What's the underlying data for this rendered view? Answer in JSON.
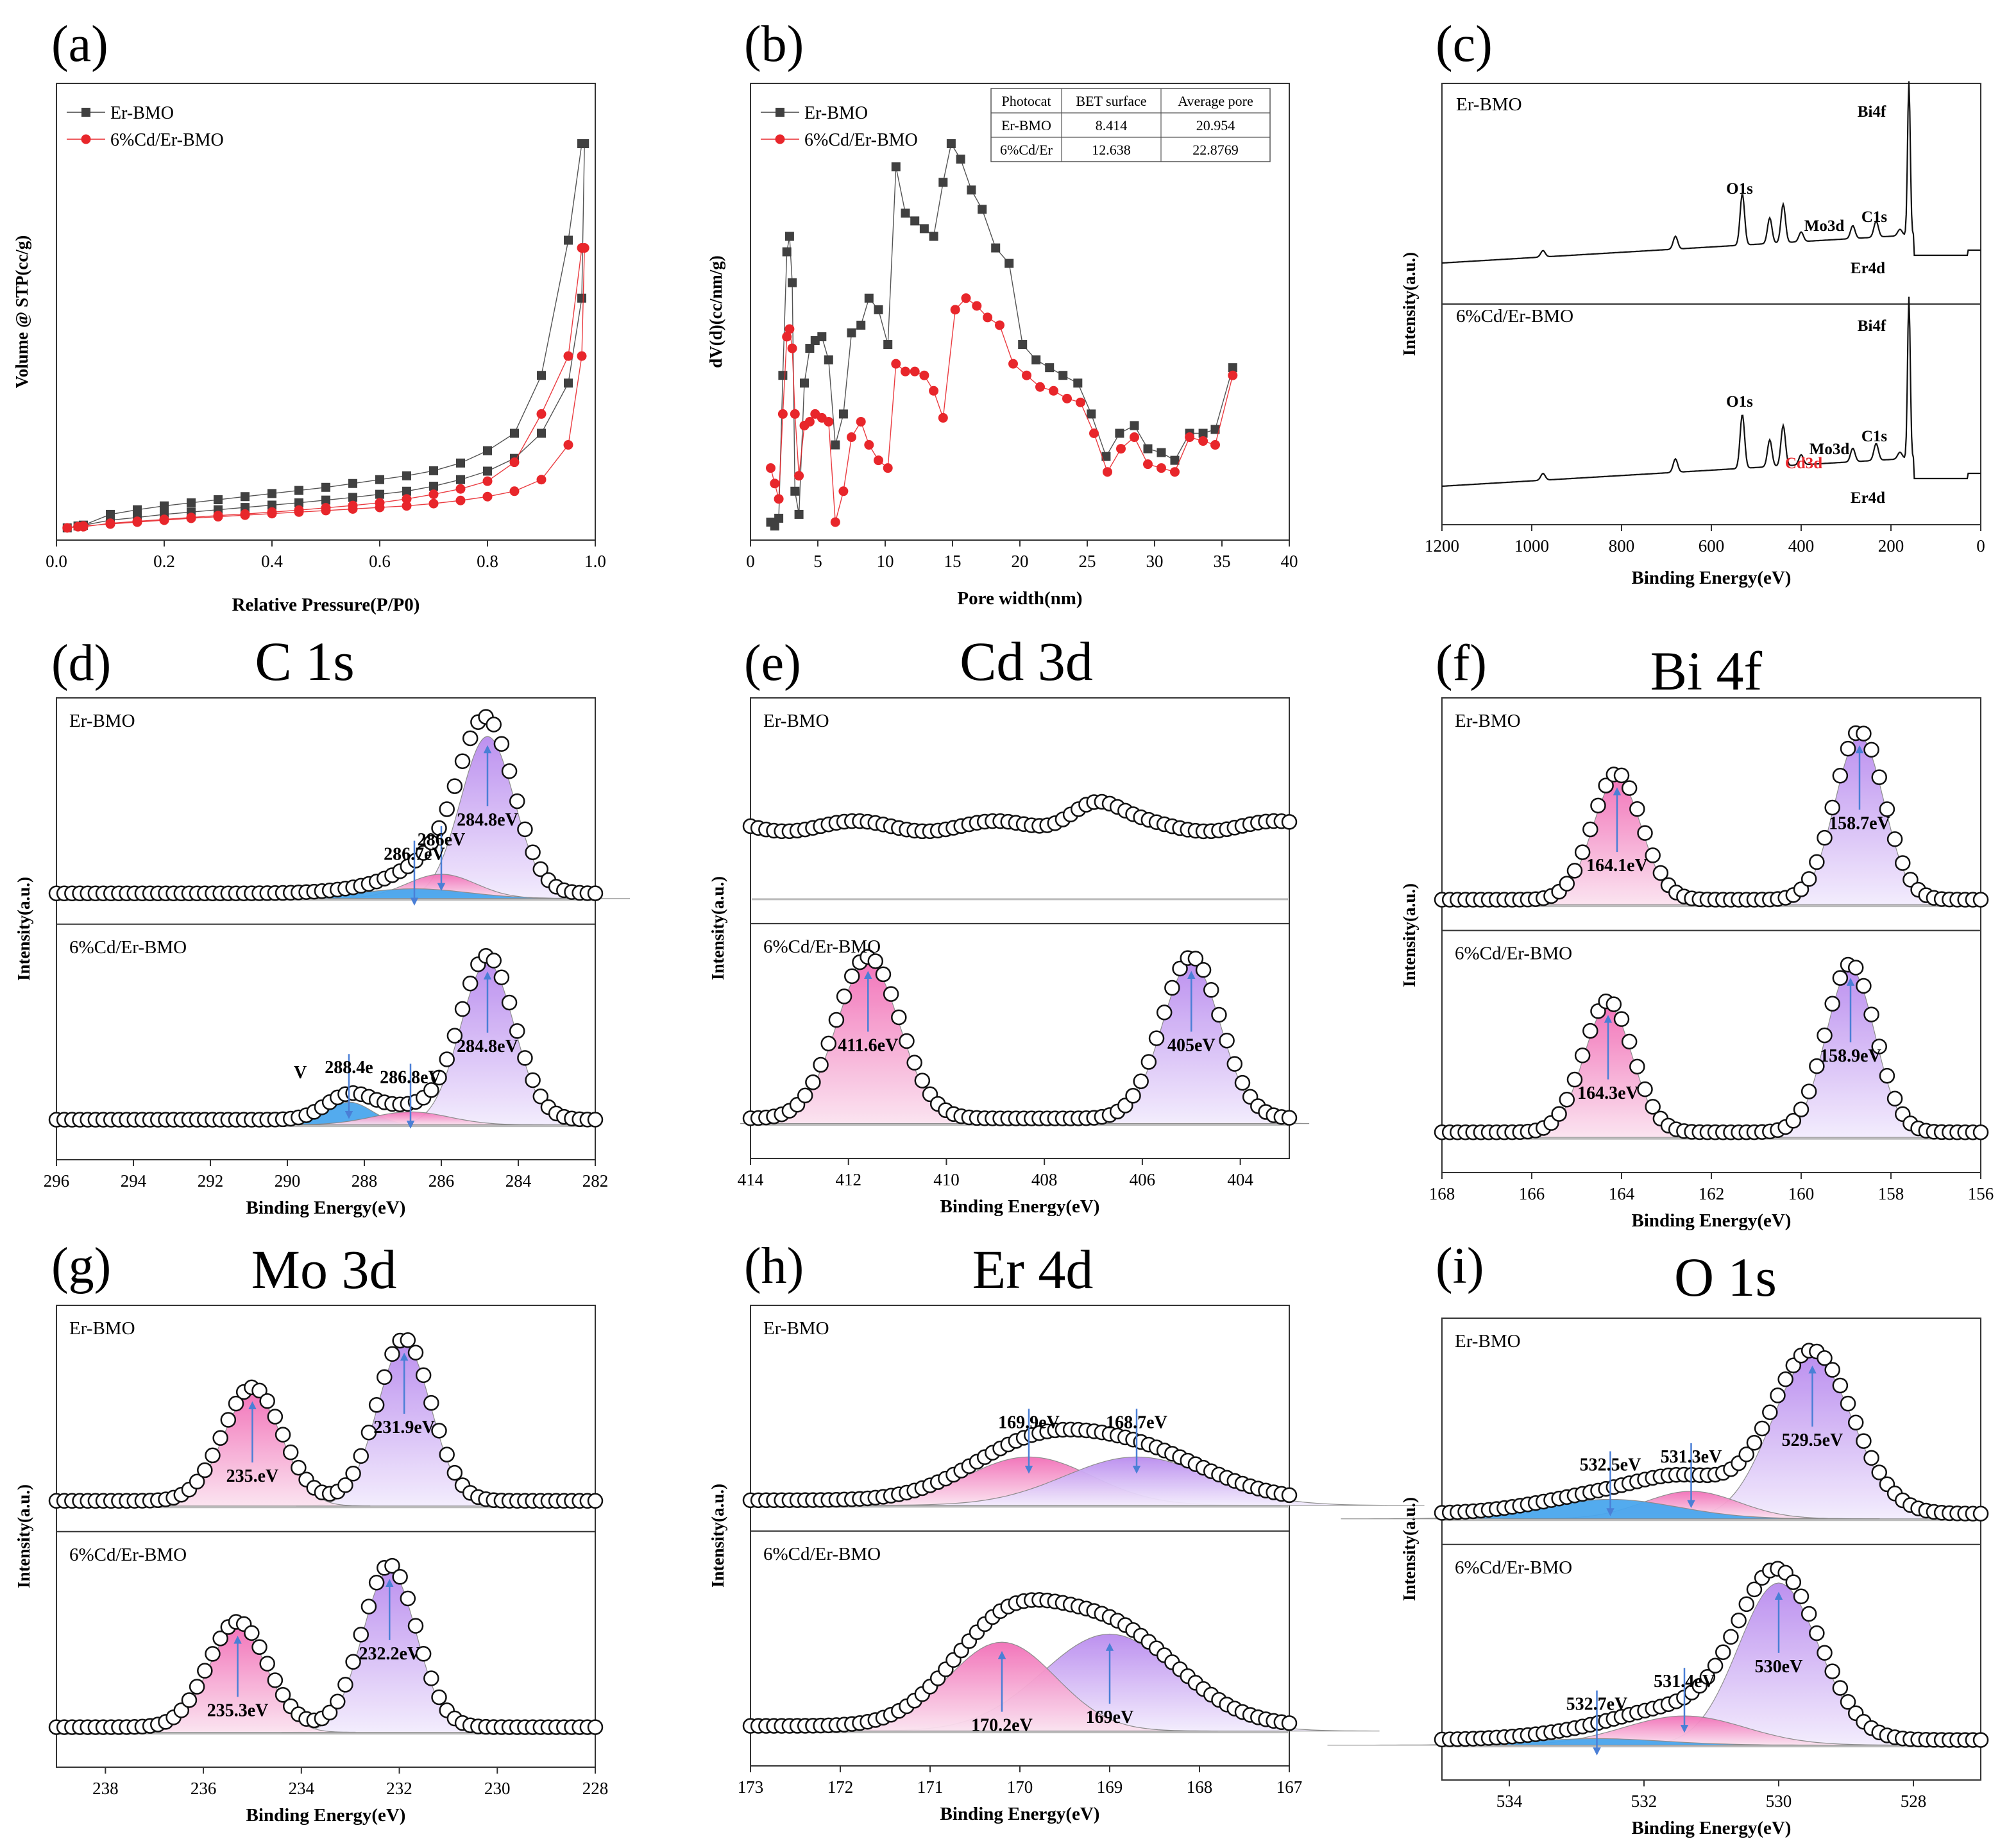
{
  "chart_data": [
    {
      "panel": "(a)",
      "type": "scatter",
      "title": "",
      "xlabel": "Relative Pressure(P/P0)",
      "ylabel": "Volume @ STP(cc/g)",
      "xlim": [
        0,
        1.0
      ],
      "ylim": [
        0,
        100
      ],
      "xticks": [
        "0.0",
        "0.2",
        "0.4",
        "0.6",
        "0.8",
        "1.0"
      ],
      "legend": [
        "Er-BMO",
        "6%Cd/Er-BMO"
      ],
      "series": [
        {
          "name": "Er-BMO",
          "marker": "square",
          "color": "#404040",
          "x": [
            0.02,
            0.04,
            0.05,
            0.1,
            0.15,
            0.2,
            0.25,
            0.3,
            0.35,
            0.4,
            0.45,
            0.5,
            0.55,
            0.6,
            0.65,
            0.7,
            0.75,
            0.8,
            0.85,
            0.9,
            0.95,
            0.975,
            0.98,
            0.975,
            0.95,
            0.9,
            0.85,
            0.8,
            0.75,
            0.7,
            0.65,
            0.6,
            0.55,
            0.5,
            0.45,
            0.4,
            0.35,
            0.3,
            0.25,
            0.2,
            0.15,
            0.1,
            0.05
          ],
          "y": [
            0.5,
            1.0,
            1.2,
            2.5,
            3.2,
            4.0,
            4.6,
            5.2,
            5.8,
            6.4,
            7.0,
            7.7,
            8.4,
            9.2,
            10.0,
            11.3,
            13.0,
            15.2,
            18.5,
            25.0,
            38.0,
            60.0,
            100.0,
            100.0,
            75.0,
            40.0,
            25.0,
            20.5,
            17.3,
            15.3,
            14.0,
            13.0,
            12.0,
            11.0,
            10.2,
            9.4,
            8.6,
            7.8,
            7.0,
            6.2,
            5.2,
            4.0,
            1.2
          ]
        },
        {
          "name": "6%Cd/Er-BMO",
          "marker": "circle",
          "color": "#e8262b",
          "x": [
            0.02,
            0.04,
            0.05,
            0.1,
            0.15,
            0.2,
            0.25,
            0.3,
            0.35,
            0.4,
            0.45,
            0.5,
            0.55,
            0.6,
            0.65,
            0.7,
            0.75,
            0.8,
            0.85,
            0.9,
            0.95,
            0.975,
            0.98,
            0.975,
            0.95,
            0.9,
            0.85,
            0.8,
            0.75,
            0.7,
            0.65,
            0.6,
            0.55,
            0.5,
            0.45,
            0.4,
            0.35,
            0.3,
            0.25,
            0.2,
            0.15,
            0.1,
            0.05
          ],
          "y": [
            0.5,
            0.8,
            1.0,
            1.5,
            2.0,
            2.5,
            3.0,
            3.4,
            3.8,
            4.2,
            4.6,
            5.0,
            5.4,
            5.8,
            6.2,
            6.8,
            7.6,
            8.6,
            10.0,
            13.0,
            22.0,
            45.0,
            73.0,
            73.0,
            45.0,
            30.0,
            17.5,
            12.6,
            10.6,
            9.2,
            8.0,
            7.0,
            6.3,
            5.7,
            5.1,
            4.6,
            4.1,
            3.7,
            3.2,
            2.7,
            2.2,
            1.7,
            0.8
          ]
        }
      ]
    },
    {
      "panel": "(b)",
      "type": "scatter",
      "title": "",
      "xlabel": "Pore width(nm)",
      "ylabel": "dV(d)(cc/nm/g)",
      "xlim": [
        0,
        40
      ],
      "ylim": [
        0,
        100
      ],
      "xticks": [
        "0",
        "5",
        "10",
        "15",
        "20",
        "25",
        "30",
        "35",
        "40"
      ],
      "legend": [
        "Er-BMO",
        "6%Cd/Er-BMO"
      ],
      "table": {
        "headers": [
          "Photocat",
          "BET surface",
          "Average pore"
        ],
        "rows": [
          [
            "Er-BMO",
            "8.414",
            "20.954"
          ],
          [
            "6%Cd/Er",
            "12.638",
            "22.8769"
          ]
        ]
      },
      "series": [
        {
          "name": "Er-BMO",
          "marker": "square",
          "color": "#404040",
          "x": [
            1.5,
            1.8,
            2.1,
            2.4,
            2.7,
            2.9,
            3.1,
            3.3,
            3.6,
            4.0,
            4.4,
            4.8,
            5.3,
            5.8,
            6.3,
            6.9,
            7.5,
            8.2,
            8.8,
            9.5,
            10.2,
            10.8,
            11.5,
            12.2,
            12.9,
            13.6,
            14.3,
            14.9,
            15.6,
            16.4,
            17.2,
            18.2,
            19.2,
            20.2,
            21.2,
            22.2,
            23.2,
            24.3,
            25.3,
            26.4,
            27.4,
            28.5,
            29.5,
            30.5,
            31.5,
            32.6,
            33.6,
            34.5,
            35.8
          ],
          "y": [
            2,
            1,
            3,
            40,
            72,
            76,
            64,
            10,
            4,
            38,
            47,
            49,
            50,
            44,
            22,
            30,
            51,
            53,
            60,
            57,
            48,
            94,
            82,
            80,
            78,
            76,
            90,
            100,
            96,
            88,
            83,
            73,
            69,
            48,
            44,
            42,
            40,
            38,
            30,
            19,
            25,
            27,
            21,
            20,
            18,
            25,
            25,
            26,
            42
          ]
        },
        {
          "name": "6%Cd/Er-BMO",
          "marker": "circle",
          "color": "#e8262b",
          "x": [
            1.5,
            1.8,
            2.1,
            2.4,
            2.7,
            2.9,
            3.1,
            3.3,
            3.6,
            4.0,
            4.4,
            4.8,
            5.3,
            5.8,
            6.3,
            6.9,
            7.5,
            8.2,
            8.8,
            9.5,
            10.2,
            10.8,
            11.5,
            12.2,
            12.9,
            13.6,
            14.3,
            15.2,
            16.0,
            16.8,
            17.6,
            18.5,
            19.5,
            20.5,
            21.5,
            22.5,
            23.5,
            24.5,
            25.5,
            26.5,
            27.5,
            28.5,
            29.5,
            30.5,
            31.5,
            32.6,
            33.6,
            34.5,
            35.8
          ],
          "y": [
            16,
            12,
            8,
            30,
            50,
            52,
            47,
            30,
            14,
            27,
            28,
            30,
            29,
            28,
            2,
            10,
            24,
            28,
            22,
            18,
            16,
            43,
            41,
            41,
            40,
            36,
            29,
            57,
            60,
            58,
            55,
            53,
            43,
            40,
            37,
            36,
            34,
            33,
            25,
            15,
            21,
            24,
            17,
            16,
            15,
            24,
            23,
            22,
            40
          ]
        }
      ]
    },
    {
      "panel": "(c)",
      "type": "line",
      "title": "",
      "xlabel": "Binding Energy(eV)",
      "ylabel": "Intensity(a.u.)",
      "xlim": [
        1200,
        0
      ],
      "xticks": [
        "1200",
        "1000",
        "800",
        "600",
        "400",
        "200",
        "0"
      ],
      "subplots": [
        {
          "label": "Er-BMO",
          "annotations": [
            "Bi4f",
            "O1s",
            "Mo3d",
            "C1s",
            "Er4d"
          ]
        },
        {
          "label": "6%Cd/Er-BMO",
          "annotations": [
            "Bi4f",
            "O1s",
            "Mo3d",
            "C1s",
            "Cd3d",
            "Er4d"
          ]
        }
      ],
      "peaks_eV": [
        975,
        680,
        531,
        470,
        440,
        400,
        285,
        233,
        180,
        160,
        25
      ]
    },
    {
      "panel": "(d)",
      "type": "line",
      "title": "C 1s",
      "xlabel": "Binding Energy(eV)",
      "ylabel": "Intensity(a.u.)",
      "xlim": [
        296,
        282
      ],
      "xticks": [
        "296",
        "294",
        "292",
        "290",
        "288",
        "286",
        "284",
        "282"
      ],
      "subplots": [
        {
          "label": "Er-BMO",
          "peaks": [
            {
              "center": 284.8,
              "label": "284.8eV",
              "amp": 1.0,
              "width": 0.7,
              "color": "#c8a5f2"
            },
            {
              "center": 286.0,
              "label": "286eV",
              "amp": 0.15,
              "width": 0.9,
              "color": "#f26fb7"
            },
            {
              "center": 286.7,
              "label": "286.7eV",
              "amp": 0.06,
              "width": 1.4,
              "color": "#4aa7ee"
            }
          ]
        },
        {
          "label": "6%Cd/Er-BMO",
          "peaks": [
            {
              "center": 284.8,
              "label": "284.8eV",
              "amp": 1.0,
              "width": 0.7,
              "color": "#c8a5f2"
            },
            {
              "center": 286.8,
              "label": "286.8eV",
              "amp": 0.08,
              "width": 1.0,
              "color": "#f26fb7"
            },
            {
              "center": 288.4,
              "label": "288.4e",
              "amp": 0.14,
              "width": 0.6,
              "color": "#4aa7ee"
            }
          ]
        }
      ],
      "extra_text": [
        "V"
      ]
    },
    {
      "panel": "(e)",
      "type": "line",
      "title": "Cd 3d",
      "xlabel": "Binding Energy(eV)",
      "ylabel": "Intensity(a.u.)",
      "xlim": [
        414,
        403
      ],
      "xticks": [
        "414",
        "412",
        "410",
        "408",
        "406",
        "404"
      ],
      "subplots": [
        {
          "label": "Er-BMO",
          "peaks": []
        },
        {
          "label": "6%Cd/Er-BMO",
          "peaks": [
            {
              "center": 411.6,
              "label": "411.6eV",
              "amp": 1.0,
              "width": 0.65,
              "color": "#f26fb7"
            },
            {
              "center": 405,
              "label": "405eV",
              "amp": 1.0,
              "width": 0.6,
              "color": "#c8a5f2"
            }
          ]
        }
      ]
    },
    {
      "panel": "(f)",
      "type": "line",
      "title": "Bi 4f",
      "xlabel": "Binding Energy(eV)",
      "ylabel": "Intensity(a.u.)",
      "xlim": [
        168,
        156
      ],
      "xticks": [
        "168",
        "166",
        "164",
        "162",
        "160",
        "158",
        "156"
      ],
      "subplots": [
        {
          "label": "Er-BMO",
          "peaks": [
            {
              "center": 164.1,
              "label": "164.1eV",
              "amp": 0.75,
              "width": 0.55,
              "color": "#f26fb7"
            },
            {
              "center": 158.7,
              "label": "158.7eV",
              "amp": 1.0,
              "width": 0.55,
              "color": "#c8a5f2"
            }
          ]
        },
        {
          "label": "6%Cd/Er-BMO",
          "peaks": [
            {
              "center": 164.3,
              "label": "164.3eV",
              "amp": 0.78,
              "width": 0.55,
              "color": "#f26fb7"
            },
            {
              "center": 158.9,
              "label": "158.9eV",
              "amp": 1.0,
              "width": 0.55,
              "color": "#c8a5f2"
            }
          ]
        }
      ]
    },
    {
      "panel": "(g)",
      "type": "line",
      "title": "Mo 3d",
      "xlabel": "Binding Energy(eV)",
      "ylabel": "Intensity(a.u.)",
      "xlim": [
        239,
        228
      ],
      "xticks": [
        "238",
        "236",
        "234",
        "232",
        "230",
        "228"
      ],
      "subplots": [
        {
          "label": "Er-BMO",
          "peaks": [
            {
              "center": 235.0,
              "label": "235.eV",
              "amp": 0.7,
              "width": 0.6,
              "color": "#f26fb7"
            },
            {
              "center": 231.9,
              "label": "231.9eV",
              "amp": 1.0,
              "width": 0.55,
              "color": "#c8a5f2"
            }
          ]
        },
        {
          "label": "6%Cd/Er-BMO",
          "peaks": [
            {
              "center": 235.3,
              "label": "235.3eV",
              "amp": 0.65,
              "width": 0.6,
              "color": "#f26fb7"
            },
            {
              "center": 232.2,
              "label": "232.2eV",
              "amp": 1.0,
              "width": 0.55,
              "color": "#c8a5f2"
            }
          ]
        }
      ]
    },
    {
      "panel": "(h)",
      "type": "line",
      "title": "Er 4d",
      "xlabel": "Binding Energy(eV)",
      "ylabel": "Intensity(a.u.)",
      "xlim": [
        173,
        167
      ],
      "xticks": [
        "173",
        "172",
        "171",
        "170",
        "169",
        "168",
        "167"
      ],
      "subplots": [
        {
          "label": "Er-BMO",
          "peaks": [
            {
              "center": 169.9,
              "label": "169.9eV",
              "amp": 0.3,
              "width": 0.7,
              "color": "#f26fb7"
            },
            {
              "center": 168.7,
              "label": "168.7eV",
              "amp": 0.3,
              "width": 0.8,
              "color": "#c8a5f2"
            }
          ]
        },
        {
          "label": "6%Cd/Er-BMO",
          "peaks": [
            {
              "center": 170.2,
              "label": "170.2eV",
              "amp": 0.55,
              "width": 0.6,
              "color": "#f26fb7"
            },
            {
              "center": 169.0,
              "label": "169eV",
              "amp": 0.6,
              "width": 0.75,
              "color": "#c8a5f2"
            }
          ]
        }
      ]
    },
    {
      "panel": "(i)",
      "type": "line",
      "title": "O 1s",
      "xlabel": "Binding Energy(eV)",
      "ylabel": "Intensity(a.u.)",
      "xlim": [
        535,
        527
      ],
      "xticks": [
        "534",
        "532",
        "530",
        "528"
      ],
      "subplots": [
        {
          "label": "Er-BMO",
          "peaks": [
            {
              "center": 529.5,
              "label": "529.5eV",
              "amp": 1.0,
              "width": 0.6,
              "color": "#c8a5f2"
            },
            {
              "center": 531.3,
              "label": "531.3eV",
              "amp": 0.17,
              "width": 0.7,
              "color": "#f26fb7"
            },
            {
              "center": 532.5,
              "label": "532.5eV",
              "amp": 0.12,
              "width": 1.0,
              "color": "#4aa7ee"
            }
          ]
        },
        {
          "label": "6%Cd/Er-BMO",
          "peaks": [
            {
              "center": 530.0,
              "label": "530eV",
              "amp": 1.0,
              "width": 0.6,
              "color": "#c8a5f2"
            },
            {
              "center": 531.4,
              "label": "531.4eV",
              "amp": 0.18,
              "width": 0.9,
              "color": "#f26fb7"
            },
            {
              "center": 532.7,
              "label": "532.7eV",
              "amp": 0.04,
              "width": 1.0,
              "color": "#4aa7ee"
            }
          ]
        }
      ]
    }
  ],
  "colors": {
    "er_bmo": "#404040",
    "cd_er_bmo": "#e8262b",
    "arrow": "#4a7fd6",
    "baseline": "#bbbbbb"
  }
}
